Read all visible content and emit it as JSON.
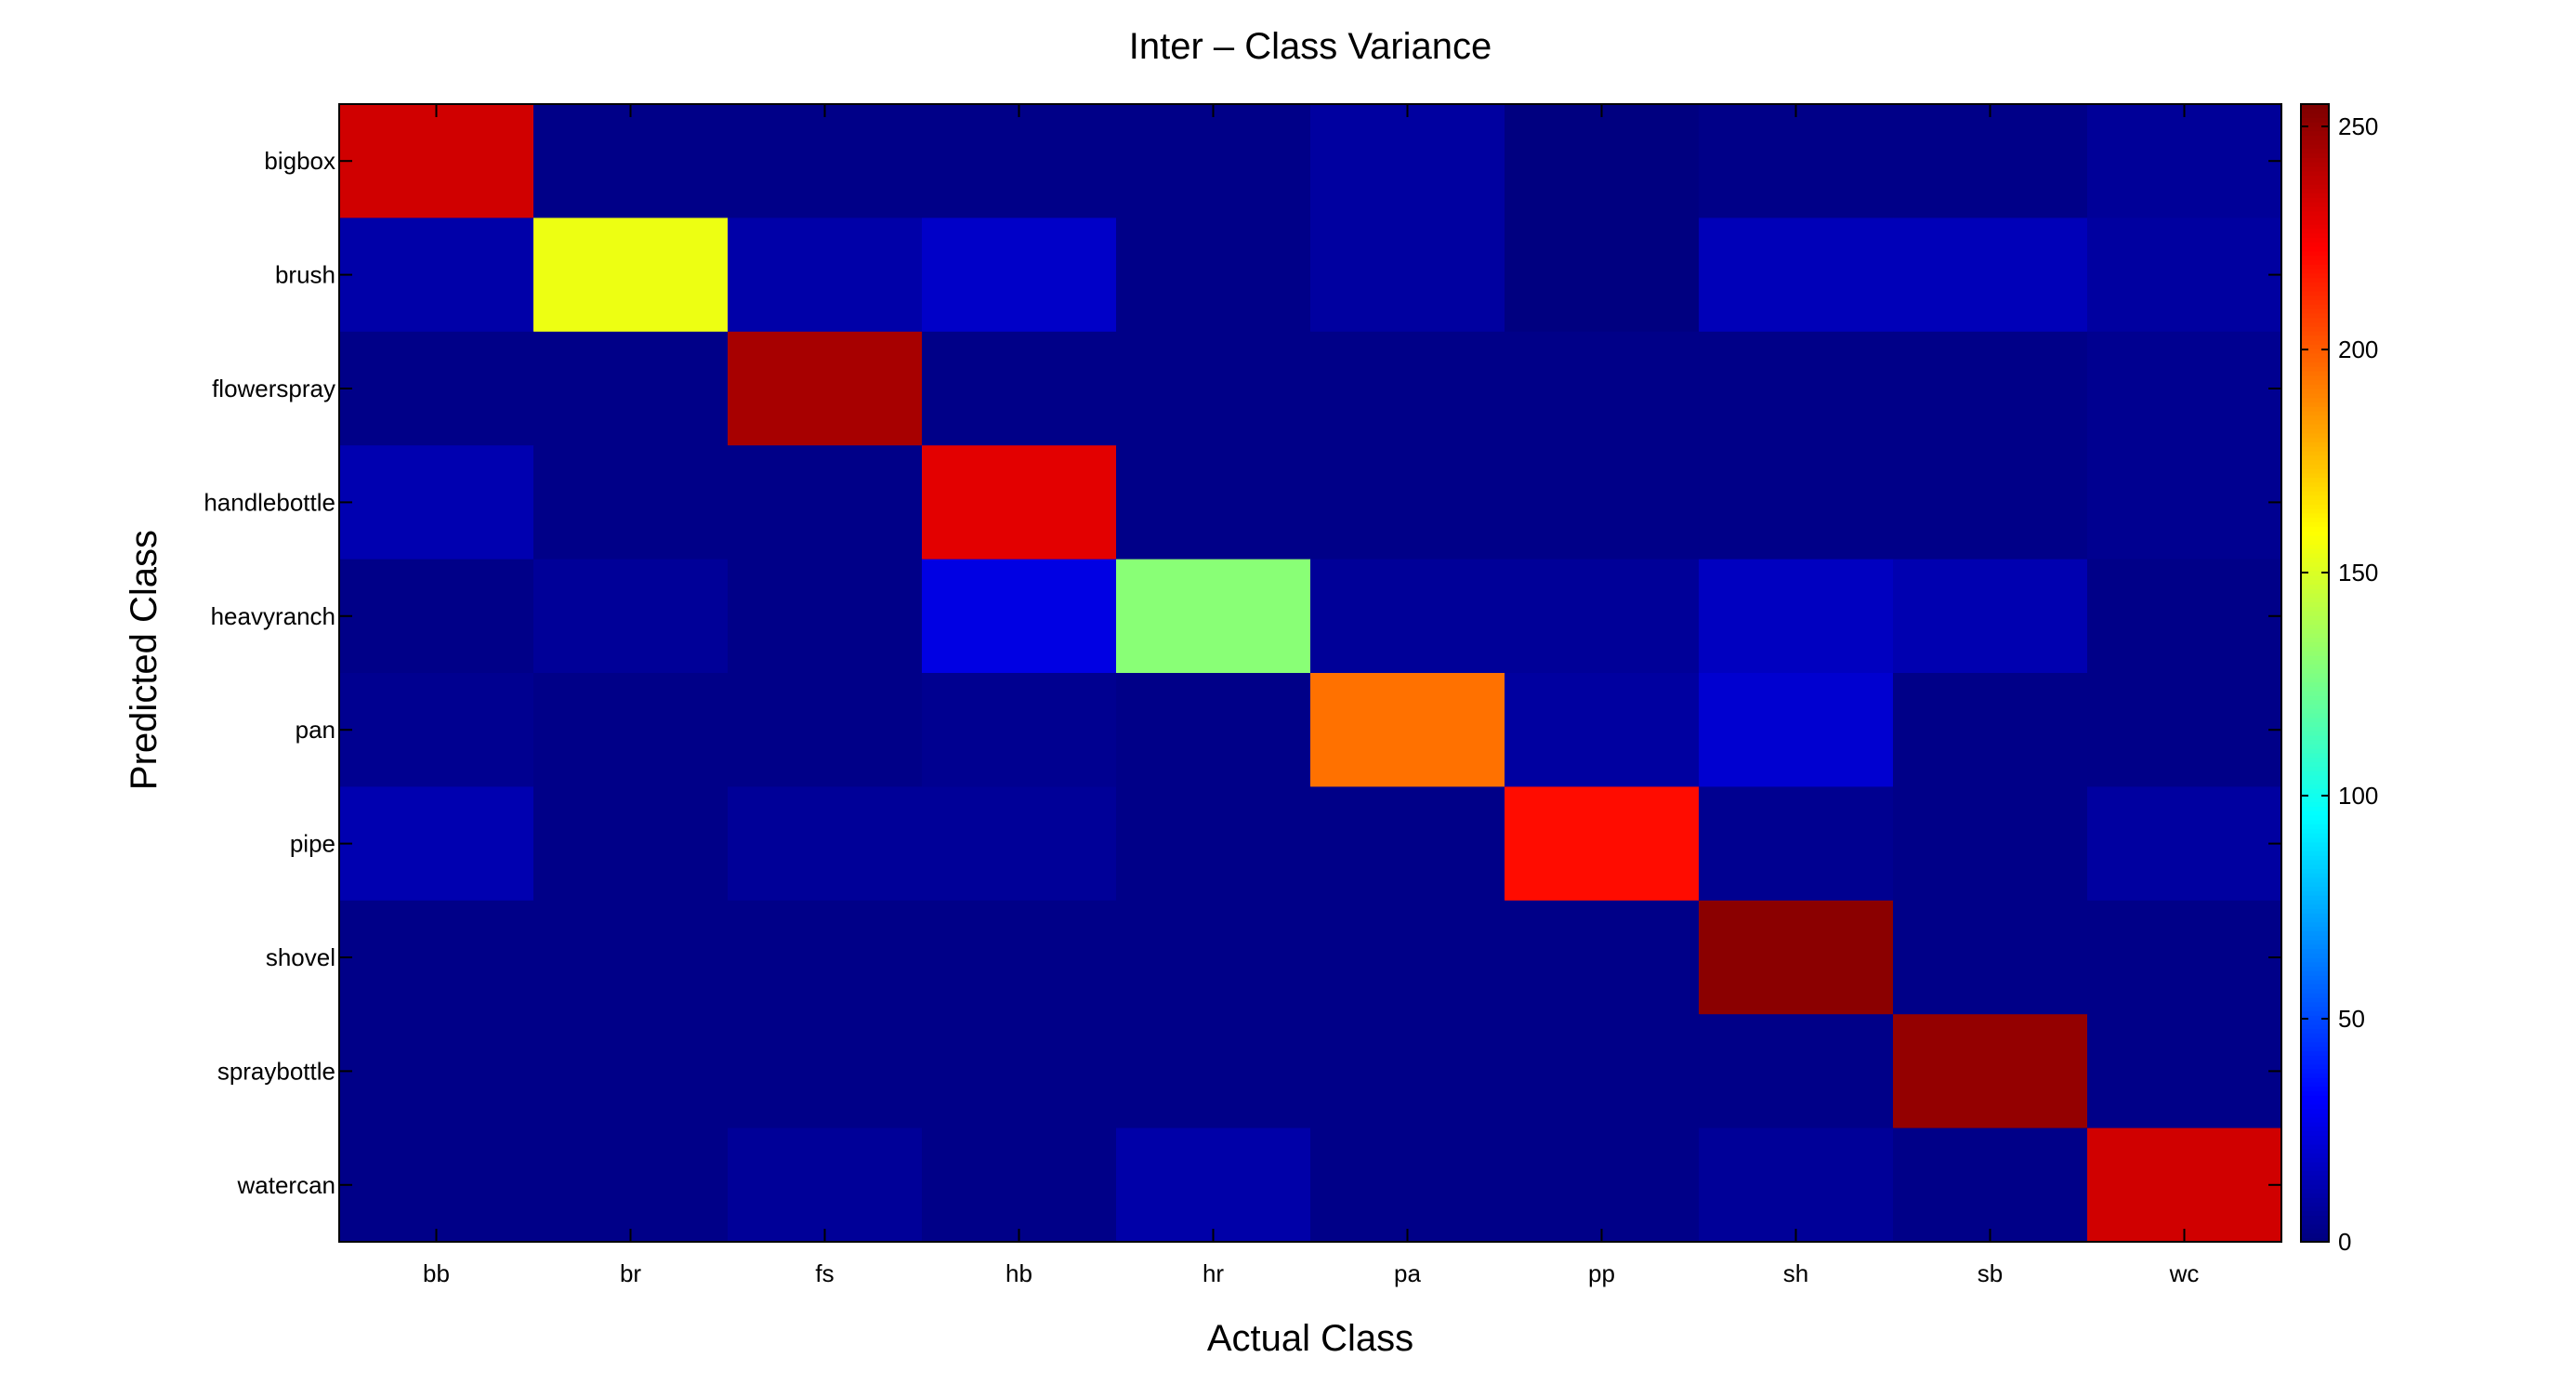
{
  "chart_data": {
    "type": "heatmap",
    "title": "Inter – Class Variance",
    "xlabel": "Actual Class",
    "ylabel": "Predicted Class",
    "x_categories": [
      "bb",
      "br",
      "fs",
      "hb",
      "hr",
      "pa",
      "pp",
      "sh",
      "sb",
      "wc"
    ],
    "y_categories": [
      "bigbox",
      "brush",
      "flowerspray",
      "handlebottle",
      "heavyranch",
      "pan",
      "pipe",
      "shovel",
      "spraybottle",
      "watercan"
    ],
    "values": [
      [
        235,
        2,
        2,
        2,
        2,
        8,
        0,
        2,
        2,
        6
      ],
      [
        10,
        155,
        10,
        18,
        2,
        8,
        0,
        14,
        14,
        8
      ],
      [
        2,
        2,
        245,
        2,
        2,
        2,
        2,
        2,
        2,
        4
      ],
      [
        12,
        2,
        2,
        230,
        2,
        2,
        2,
        2,
        2,
        4
      ],
      [
        2,
        6,
        2,
        25,
        130,
        6,
        6,
        16,
        12,
        2
      ],
      [
        4,
        2,
        2,
        4,
        2,
        195,
        8,
        20,
        2,
        2
      ],
      [
        12,
        2,
        6,
        6,
        2,
        2,
        220,
        4,
        2,
        8
      ],
      [
        2,
        2,
        2,
        2,
        2,
        2,
        2,
        252,
        2,
        2
      ],
      [
        2,
        2,
        2,
        2,
        2,
        2,
        2,
        2,
        250,
        2
      ],
      [
        2,
        2,
        6,
        2,
        10,
        2,
        2,
        6,
        2,
        235
      ]
    ],
    "colormap": "jet",
    "colorbar": {
      "range": [
        0,
        255
      ],
      "ticks": [
        "0",
        "50",
        "100",
        "150",
        "200",
        "250"
      ]
    },
    "grid": false,
    "legend": "colorbar-right"
  }
}
